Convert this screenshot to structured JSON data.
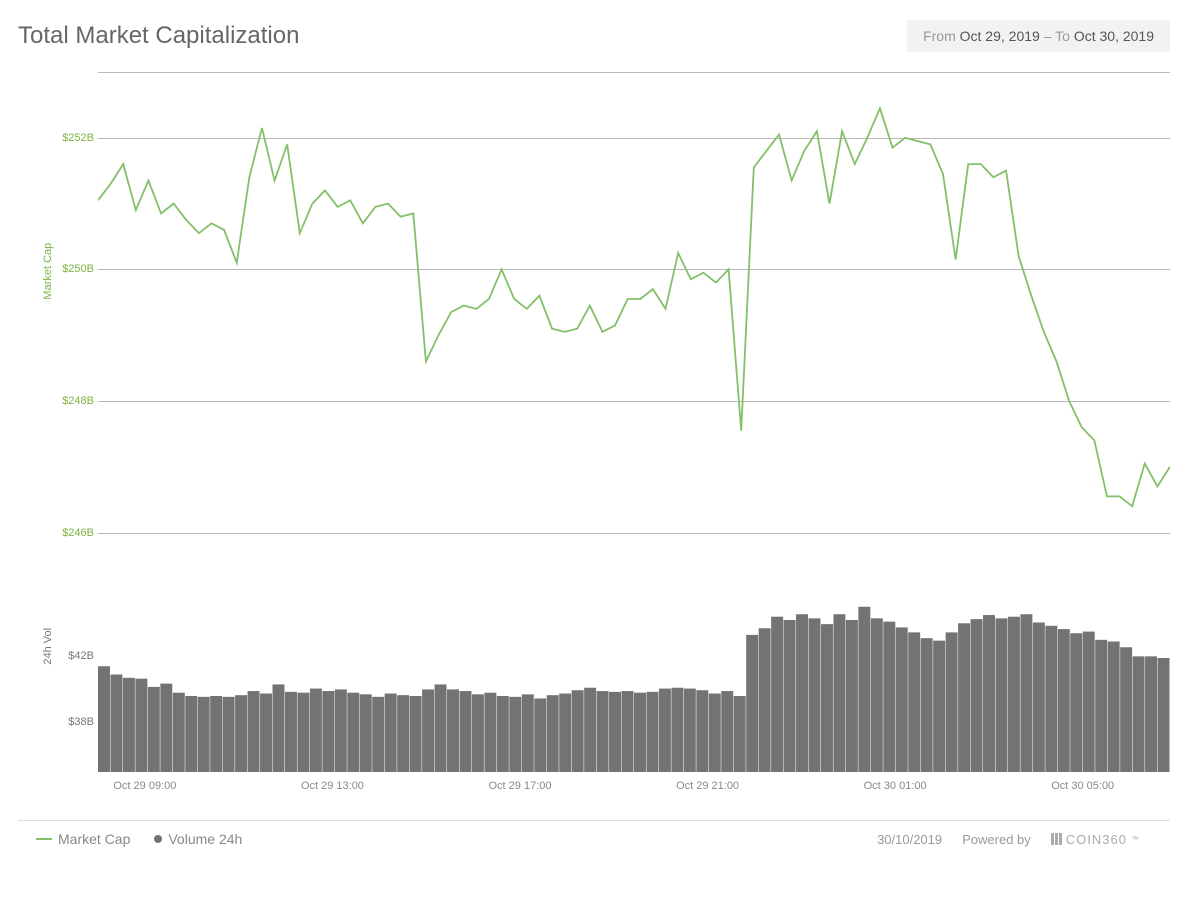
{
  "title": "Total Market Capitalization",
  "date_range": {
    "from_label": "From",
    "from_value": "Oct 29, 2019",
    "sep": "–",
    "to_label": "To",
    "to_value": "Oct 30, 2019"
  },
  "line_chart": {
    "type": "line",
    "y_axis_label": "Market Cap",
    "line_color": "#82c069",
    "line_width": 1.8,
    "grid_color": "#888888",
    "background_color": "#ffffff",
    "label_color": "#7cb342",
    "label_fontsize": 11,
    "ylim": [
      245.4,
      253.0
    ],
    "y_ticks": [
      {
        "value": 246,
        "label": "$246B"
      },
      {
        "value": 248,
        "label": "$248B"
      },
      {
        "value": 250,
        "label": "$250B"
      },
      {
        "value": 252,
        "label": "$252B"
      }
    ],
    "gridlines": [
      246,
      248,
      250,
      252
    ],
    "top_border": 253.0,
    "series": [
      251.05,
      251.3,
      251.6,
      250.9,
      251.35,
      250.85,
      251.0,
      250.75,
      250.55,
      250.7,
      250.6,
      250.1,
      251.4,
      252.15,
      251.35,
      251.9,
      250.55,
      251.0,
      251.2,
      250.95,
      251.05,
      250.7,
      250.95,
      251.0,
      250.8,
      250.85,
      248.6,
      249.0,
      249.35,
      249.45,
      249.4,
      249.55,
      250.0,
      249.55,
      249.4,
      249.6,
      249.1,
      249.05,
      249.1,
      249.45,
      249.05,
      249.15,
      249.55,
      249.55,
      249.7,
      249.4,
      250.25,
      249.85,
      249.95,
      249.8,
      250.0,
      247.55,
      251.55,
      251.8,
      252.05,
      251.35,
      251.8,
      252.1,
      251.0,
      252.1,
      251.6,
      252.0,
      252.45,
      251.85,
      252.0,
      251.95,
      251.9,
      251.45,
      250.15,
      251.6,
      251.6,
      251.4,
      251.5,
      250.2,
      249.6,
      249.05,
      248.6,
      248.0,
      247.6,
      247.4,
      246.55,
      246.55,
      246.4,
      247.05,
      246.7,
      247.0
    ]
  },
  "bar_chart": {
    "type": "bar",
    "y_axis_label": "24h Vol",
    "bar_color": "#737373",
    "label_color": "#777777",
    "label_fontsize": 11,
    "ylim": [
      35.0,
      46.5
    ],
    "y_ticks": [
      {
        "value": 38,
        "label": "$38B"
      },
      {
        "value": 42,
        "label": "$42B"
      }
    ],
    "series": [
      41.4,
      40.9,
      40.7,
      40.65,
      40.15,
      40.35,
      39.8,
      39.6,
      39.55,
      39.6,
      39.55,
      39.65,
      39.9,
      39.75,
      40.3,
      39.85,
      39.8,
      40.05,
      39.9,
      40.0,
      39.8,
      39.7,
      39.55,
      39.75,
      39.65,
      39.6,
      40.0,
      40.3,
      40.0,
      39.9,
      39.7,
      39.8,
      39.6,
      39.55,
      39.7,
      39.45,
      39.65,
      39.75,
      39.95,
      40.1,
      39.9,
      39.85,
      39.9,
      39.8,
      39.85,
      40.05,
      40.1,
      40.05,
      39.95,
      39.75,
      39.9,
      39.6,
      43.3,
      43.7,
      44.4,
      44.2,
      44.55,
      44.3,
      43.95,
      44.55,
      44.2,
      45.0,
      44.3,
      44.1,
      43.75,
      43.45,
      43.1,
      42.95,
      43.45,
      44.0,
      44.25,
      44.5,
      44.3,
      44.4,
      44.55,
      44.05,
      43.85,
      43.65,
      43.4,
      43.5,
      43.0,
      42.9,
      42.55,
      42.0,
      42.0,
      41.9
    ]
  },
  "x_axis": {
    "label_color": "#888888",
    "label_fontsize": 11,
    "ticks": [
      {
        "pos": 0.045,
        "label": "Oct 29 09:00"
      },
      {
        "pos": 0.225,
        "label": "Oct 29 13:00"
      },
      {
        "pos": 0.405,
        "label": "Oct 29 17:00"
      },
      {
        "pos": 0.585,
        "label": "Oct 29 21:00"
      },
      {
        "pos": 0.765,
        "label": "Oct 30 01:00"
      },
      {
        "pos": 0.945,
        "label": "Oct 30 05:00"
      }
    ]
  },
  "legend": {
    "items": [
      {
        "type": "line",
        "color": "#82c069",
        "label": "Market Cap"
      },
      {
        "type": "dot",
        "color": "#737373",
        "label": "Volume 24h"
      }
    ]
  },
  "footer": {
    "date": "30/10/2019",
    "powered_by": "Powered by",
    "brand": "COIN360",
    "brand_tm": "™"
  }
}
